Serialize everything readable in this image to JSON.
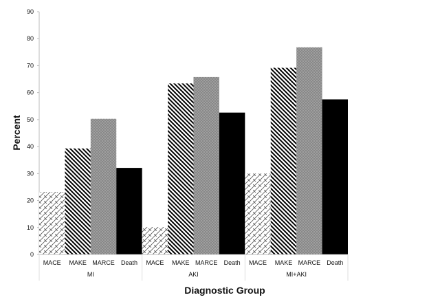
{
  "chart_data": {
    "type": "bar",
    "title": "",
    "xlabel": "Diagnostic Group",
    "ylabel": "Percent",
    "ylim": [
      0,
      90
    ],
    "yticks": [
      0,
      10,
      20,
      30,
      40,
      50,
      60,
      70,
      80,
      90
    ],
    "grid": false,
    "groups": [
      "MI",
      "AKI",
      "MI+AKI"
    ],
    "categories": [
      "MACE",
      "MAKE",
      "MARCE",
      "Death"
    ],
    "series": [
      {
        "name": "MI",
        "values": [
          23.2,
          39.3,
          50.3,
          32.1
        ]
      },
      {
        "name": "AKI",
        "values": [
          10.2,
          63.4,
          65.8,
          52.6
        ]
      },
      {
        "name": "MI+AKI",
        "values": [
          30.0,
          69.2,
          76.8,
          57.5
        ]
      }
    ],
    "fills": {
      "MACE": "crosshatch",
      "MAKE": "diagonal-stripes",
      "MARCE": "gray-dots",
      "Death": "#000000"
    }
  }
}
